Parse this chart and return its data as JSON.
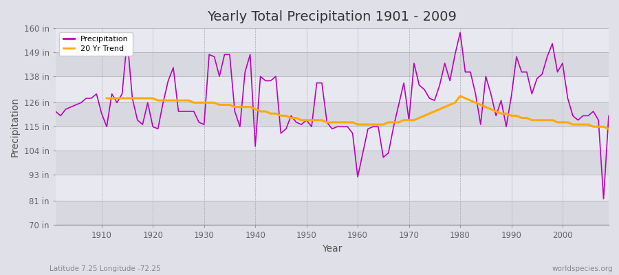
{
  "title": "Yearly Total Precipitation 1901 - 2009",
  "xlabel": "Year",
  "ylabel": "Precipitation",
  "background_color": "#e0e0e8",
  "plot_bg_light": "#e8e8f0",
  "plot_bg_dark": "#d8d8e0",
  "precip_color": "#bb00bb",
  "trend_color": "#ffaa00",
  "yticks": [
    70,
    81,
    93,
    104,
    115,
    126,
    138,
    149,
    160
  ],
  "ylabels": [
    "70 in",
    "81 in",
    "93 in",
    "104 in",
    "115 in",
    "126 in",
    "138 in",
    "149 in",
    "160 in"
  ],
  "xlim": [
    1901,
    2009
  ],
  "ylim": [
    70,
    160
  ],
  "xticks": [
    1910,
    1920,
    1930,
    1940,
    1950,
    1960,
    1970,
    1980,
    1990,
    2000
  ],
  "footnote_left": "Latitude 7.25 Longitude -72.25",
  "footnote_right": "worldspecies.org",
  "years": [
    1901,
    1902,
    1903,
    1904,
    1905,
    1906,
    1907,
    1908,
    1909,
    1910,
    1911,
    1912,
    1913,
    1914,
    1915,
    1916,
    1917,
    1918,
    1919,
    1920,
    1921,
    1922,
    1923,
    1924,
    1925,
    1926,
    1927,
    1928,
    1929,
    1930,
    1931,
    1932,
    1933,
    1934,
    1935,
    1936,
    1937,
    1938,
    1939,
    1940,
    1941,
    1942,
    1943,
    1944,
    1945,
    1946,
    1947,
    1948,
    1949,
    1950,
    1951,
    1952,
    1953,
    1954,
    1955,
    1956,
    1957,
    1958,
    1959,
    1960,
    1961,
    1962,
    1963,
    1964,
    1965,
    1966,
    1967,
    1968,
    1969,
    1970,
    1971,
    1972,
    1973,
    1974,
    1975,
    1976,
    1977,
    1978,
    1979,
    1980,
    1981,
    1982,
    1983,
    1984,
    1985,
    1986,
    1987,
    1988,
    1989,
    1990,
    1991,
    1992,
    1993,
    1994,
    1995,
    1996,
    1997,
    1998,
    1999,
    2000,
    2001,
    2002,
    2003,
    2004,
    2005,
    2006,
    2007,
    2008,
    2009
  ],
  "precip": [
    122,
    120,
    123,
    124,
    125,
    126,
    128,
    128,
    130,
    121,
    115,
    130,
    126,
    130,
    155,
    128,
    118,
    116,
    126,
    115,
    114,
    126,
    136,
    142,
    122,
    122,
    122,
    122,
    117,
    116,
    148,
    147,
    138,
    148,
    148,
    122,
    115,
    140,
    148,
    106,
    138,
    136,
    136,
    138,
    112,
    114,
    120,
    117,
    116,
    118,
    115,
    135,
    135,
    117,
    114,
    115,
    115,
    115,
    112,
    92,
    103,
    114,
    115,
    115,
    101,
    103,
    115,
    125,
    135,
    118,
    144,
    134,
    132,
    128,
    127,
    134,
    144,
    136,
    148,
    158,
    140,
    140,
    130,
    116,
    138,
    130,
    120,
    127,
    115,
    129,
    147,
    140,
    140,
    130,
    137,
    139,
    147,
    153,
    140,
    144,
    128,
    120,
    118,
    120,
    120,
    122,
    118,
    82,
    120
  ],
  "trend": [
    null,
    null,
    null,
    null,
    null,
    null,
    null,
    null,
    null,
    null,
    128,
    128,
    128,
    128,
    128,
    128,
    128,
    128,
    128,
    128,
    127,
    127,
    127,
    127,
    127,
    127,
    127,
    126,
    126,
    126,
    126,
    126,
    125,
    125,
    125,
    124,
    124,
    124,
    124,
    123,
    122,
    122,
    121,
    121,
    120,
    120,
    119,
    119,
    118,
    118,
    118,
    118,
    118,
    117,
    117,
    117,
    117,
    117,
    117,
    116,
    116,
    116,
    116,
    116,
    116,
    117,
    117,
    117,
    118,
    118,
    118,
    119,
    120,
    121,
    122,
    123,
    124,
    125,
    126,
    129,
    128,
    127,
    126,
    125,
    124,
    123,
    122,
    121,
    121,
    120,
    120,
    119,
    119,
    118,
    118,
    118,
    118,
    118,
    117,
    117,
    117,
    116,
    116,
    116,
    116,
    115,
    115,
    115,
    114
  ]
}
